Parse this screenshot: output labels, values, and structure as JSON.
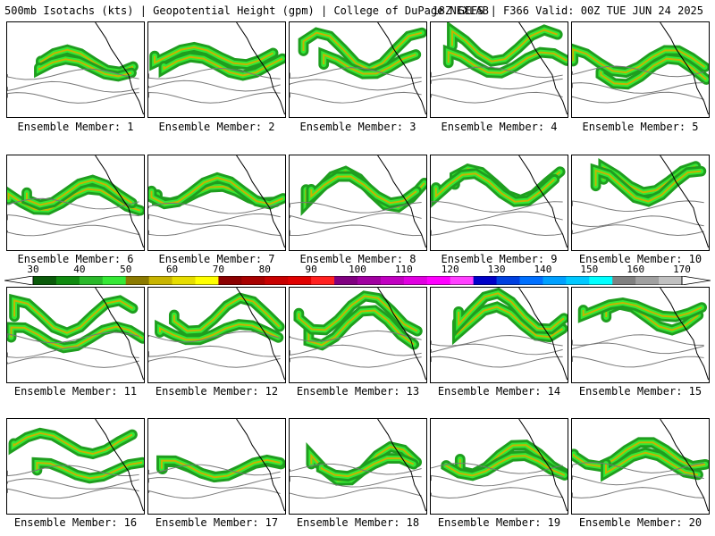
{
  "header": {
    "left": "500mb Isotachs (kts) | Geopotential Height (gpm) | College of DuPage NEXLAB",
    "right": "18Z GEFS | F366 Valid: 00Z TUE JUN 24 2025"
  },
  "colorbar": {
    "labels": [
      "30",
      "40",
      "50",
      "60",
      "70",
      "80",
      "90",
      "100",
      "110",
      "120",
      "130",
      "140",
      "150",
      "160",
      "170"
    ],
    "colors": [
      "#0a5a0a",
      "#0f8a0f",
      "#2ab82a",
      "#35e835",
      "#8b7a00",
      "#c8b400",
      "#e6dc00",
      "#ffff00",
      "#8b0000",
      "#a80000",
      "#c80000",
      "#e00000",
      "#ff2020",
      "#800080",
      "#a000a0",
      "#c000c0",
      "#e000e0",
      "#ff00ff",
      "#ff40ff",
      "#0000c8",
      "#0040e0",
      "#0070ff",
      "#00a0ff",
      "#00c8ff",
      "#00ffff",
      "#808080",
      "#a0a0a0",
      "#c0c0c0"
    ]
  },
  "members": [
    {
      "label": "Ensemble Member: 1"
    },
    {
      "label": "Ensemble Member: 2"
    },
    {
      "label": "Ensemble Member: 3"
    },
    {
      "label": "Ensemble Member: 4"
    },
    {
      "label": "Ensemble Member: 5"
    },
    {
      "label": "Ensemble Member: 6"
    },
    {
      "label": "Ensemble Member: 7"
    },
    {
      "label": "Ensemble Member: 8"
    },
    {
      "label": "Ensemble Member: 9"
    },
    {
      "label": "Ensemble Member: 10"
    },
    {
      "label": "Ensemble Member: 11"
    },
    {
      "label": "Ensemble Member: 12"
    },
    {
      "label": "Ensemble Member: 13"
    },
    {
      "label": "Ensemble Member: 14"
    },
    {
      "label": "Ensemble Member: 15"
    },
    {
      "label": "Ensemble Member: 16"
    },
    {
      "label": "Ensemble Member: 17"
    },
    {
      "label": "Ensemble Member: 18"
    },
    {
      "label": "Ensemble Member: 19"
    },
    {
      "label": "Ensemble Member: 20"
    }
  ]
}
